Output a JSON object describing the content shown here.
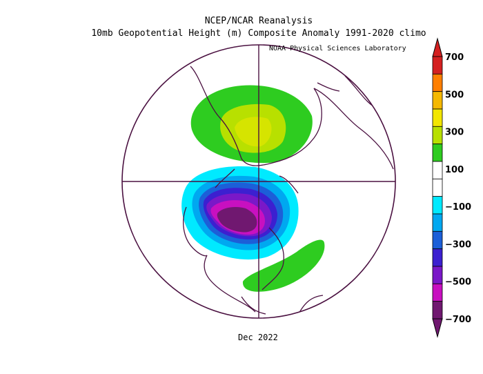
{
  "title": "NCEP/NCAR Reanalysis",
  "subtitle": "10mb Geopotential Height (m) Composite Anomaly 1991-2020 climo",
  "credit": "NOAA Physical Sciences Laboratory",
  "period_label": "Dec 2022",
  "colorbar": {
    "ticks": [
      "700",
      "500",
      "300",
      "100",
      "−100",
      "−300",
      "−500",
      "−700"
    ],
    "colors": [
      "#d42020",
      "#ff7f00",
      "#f5b800",
      "#f2e600",
      "#b8e000",
      "#2ecc20",
      "#ffffff",
      "#ffffff",
      "#00eaff",
      "#00a8f0",
      "#1c5fd8",
      "#3c20d0",
      "#7a18c8",
      "#c810c0",
      "#701870"
    ]
  },
  "chart_data": {
    "type": "heatmap",
    "variable": "10mb Geopotential Height Anomaly (m)",
    "map": "Northern Hemisphere polar stereographic",
    "levels": [
      -700,
      -600,
      -500,
      -400,
      -300,
      -200,
      -100,
      100,
      200,
      300,
      400,
      500,
      600,
      700
    ],
    "features": [
      {
        "name": "negative anomaly over North America / Hudson Bay",
        "min": -700
      },
      {
        "name": "positive anomaly over Siberia",
        "max": 300
      },
      {
        "name": "positive anomaly over North Atlantic",
        "max": 100
      }
    ]
  }
}
